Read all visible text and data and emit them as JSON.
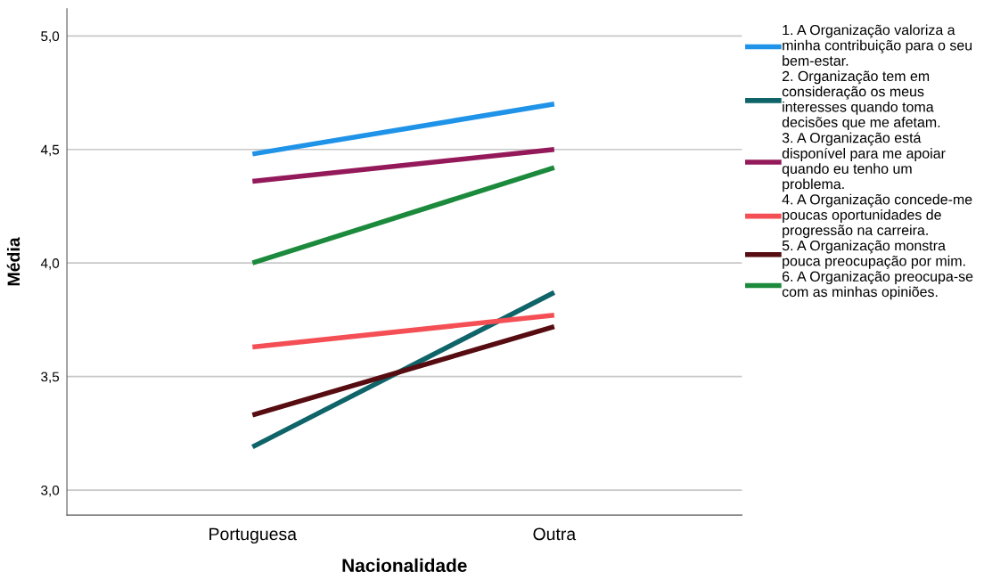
{
  "chart_data": {
    "type": "line",
    "xlabel": "Nacionalidade",
    "ylabel": "Média",
    "categories": [
      "Portuguesa",
      "Outra"
    ],
    "series": [
      {
        "name": "1. A Organização valoriza a\nminha contribuição para o seu\nbem-estar.",
        "color": "#1f93e8",
        "values": [
          4.48,
          4.7
        ]
      },
      {
        "name": "2. Organização tem em\nconsideração os meus\ninteresses quando toma\ndecisões que me afetam.",
        "color": "#0e6468",
        "values": [
          3.19,
          3.87
        ]
      },
      {
        "name": "3. A Organização está\ndisponível para me apoiar\nquando eu tenho um\nproblema.",
        "color": "#94195a",
        "values": [
          4.36,
          4.5
        ]
      },
      {
        "name": "4. A Organização concede-me\npoucas oportunidades de\nprogressão na carreira.",
        "color": "#f44f55",
        "values": [
          3.63,
          3.77
        ]
      },
      {
        "name": "5. A Organização monstra\npouca preocupação por mim.",
        "color": "#560c10",
        "values": [
          3.33,
          3.72
        ]
      },
      {
        "name": "6. A Organização preocupa-se\ncom as minhas opiniões.",
        "color": "#1c8a3c",
        "values": [
          4.0,
          4.42
        ]
      }
    ],
    "ylim": [
      2.89,
      5.12
    ],
    "yticks": [
      {
        "value": 3.0,
        "label": "3,0"
      },
      {
        "value": 3.5,
        "label": "3,5"
      },
      {
        "value": 4.0,
        "label": "4,0"
      },
      {
        "value": 4.5,
        "label": "4,5"
      },
      {
        "value": 5.0,
        "label": "5,0"
      }
    ],
    "grid": "y",
    "legend": "right",
    "marker": "none",
    "line_style": "solid"
  }
}
